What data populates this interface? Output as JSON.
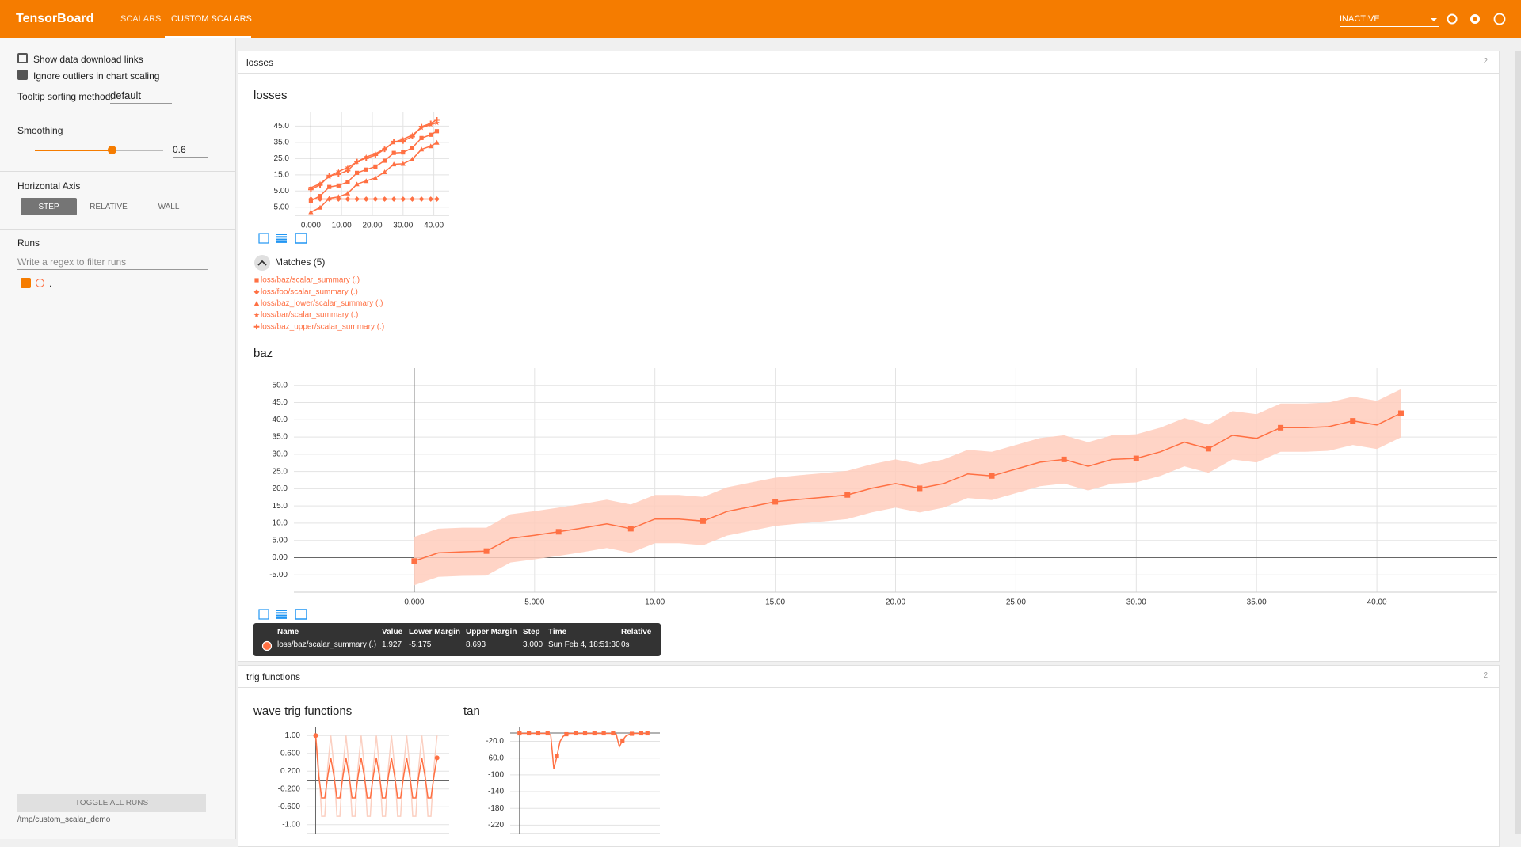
{
  "header": {
    "title": "TensorBoard",
    "tabs": [
      "SCALARS",
      "CUSTOM SCALARS"
    ],
    "status": "INACTIVE"
  },
  "sidebar": {
    "options": [
      {
        "label": "Show data download links",
        "checked": false
      },
      {
        "label": "Ignore outliers in chart scaling",
        "checked": true
      }
    ],
    "tooltip_label": "Tooltip sorting method:",
    "tooltip_value": "default",
    "smoothing_label": "Smoothing",
    "smoothing": 0.6,
    "axis_label": "Horizontal Axis",
    "axis_options": [
      "STEP",
      "RELATIVE",
      "WALL"
    ],
    "runs_label": "Runs",
    "runs_filter": "Write a regex to filter runs",
    "run": {
      "label": ".",
      "checked": true
    },
    "toggle": "TOGGLE ALL RUNS",
    "logdir": "/tmp/custom_scalar_demo"
  },
  "sections": [
    {
      "title": "losses",
      "count": 2,
      "charts": [
        {
          "type": "line",
          "title": "losses",
          "matches": "Matches (5)",
          "x": [
            0,
            3,
            6,
            9,
            12,
            15,
            18,
            21,
            24,
            27,
            30,
            33,
            36,
            39,
            41
          ],
          "xlim": [
            -5,
            45
          ],
          "ylim": [
            -10,
            54
          ],
          "xticks": [
            {
              "value": 0,
              "label": "0.000"
            },
            {
              "value": 10,
              "label": "10.00"
            },
            {
              "value": 20,
              "label": "20.00"
            },
            {
              "value": 30,
              "label": "30.00"
            },
            {
              "value": 40,
              "label": "40.00"
            }
          ],
          "yticks": [
            {
              "value": 45,
              "label": "45.0"
            },
            {
              "value": 35,
              "label": "35.0"
            },
            {
              "value": 25,
              "label": "25.0"
            },
            {
              "value": 15,
              "label": "15.0"
            },
            {
              "value": 5,
              "label": "5.00"
            },
            {
              "value": -5,
              "label": "-5.00"
            }
          ],
          "series": [
            {
              "name": "loss/baz/scalar_summary (.)",
              "color": "#ff7043",
              "marker": "square",
              "values": [
                -1.0,
                1.9,
                7.5,
                8.4,
                10.6,
                16.2,
                18.2,
                20.1,
                23.7,
                28.5,
                28.8,
                31.6,
                37.7,
                39.7,
                41.9
              ]
            },
            {
              "name": "loss/foo/scalar_summary (.)",
              "color": "#ff7043",
              "marker": "diamond",
              "values": [
                0,
                0,
                0,
                0,
                0,
                0,
                0,
                0,
                0,
                0,
                0,
                0,
                0,
                0,
                0
              ]
            },
            {
              "name": "loss/baz_lower/scalar_summary (.)",
              "color": "#ff7043",
              "marker": "triangle",
              "values": [
                -8.0,
                -5.2,
                0.5,
                1.4,
                3.6,
                9.2,
                11.2,
                13.1,
                16.7,
                21.5,
                21.8,
                24.6,
                30.7,
                32.7,
                34.9
              ]
            },
            {
              "name": "loss/bar/scalar_summary (.)",
              "color": "#ff7043",
              "marker": "star",
              "values": [
                7.0,
                9.5,
                14.0,
                17.0,
                19.5,
                23.0,
                26.0,
                28.0,
                31.0,
                35.0,
                37.0,
                39.5,
                44.0,
                46.0,
                47.0
              ]
            },
            {
              "name": "loss/baz_upper/scalar_summary (.)",
              "color": "#ff7043",
              "marker": "plus",
              "values": [
                6.0,
                8.7,
                14.5,
                15.4,
                17.6,
                23.2,
                25.2,
                27.1,
                30.7,
                35.5,
                35.8,
                38.6,
                44.7,
                46.7,
                48.9
              ]
            }
          ]
        },
        {
          "type": "margin",
          "title": "baz",
          "x": [
            0,
            1,
            2,
            3,
            4,
            5,
            6,
            7,
            8,
            9,
            10,
            11,
            12,
            13,
            14,
            15,
            16,
            17,
            18,
            19,
            20,
            21,
            22,
            23,
            24,
            25,
            26,
            27,
            28,
            29,
            30,
            31,
            32,
            33,
            34,
            35,
            36,
            37,
            38,
            39,
            40,
            41
          ],
          "xlim": [
            -5,
            45
          ],
          "ylim": [
            -10,
            55
          ],
          "xticks": [
            {
              "value": 0,
              "label": "0.000"
            },
            {
              "value": 5,
              "label": "5.000"
            },
            {
              "value": 10,
              "label": "10.00"
            },
            {
              "value": 15,
              "label": "15.00"
            },
            {
              "value": 20,
              "label": "20.00"
            },
            {
              "value": 25,
              "label": "25.00"
            },
            {
              "value": 30,
              "label": "30.00"
            },
            {
              "value": 35,
              "label": "35.00"
            },
            {
              "value": 40,
              "label": "40.00"
            }
          ],
          "yticks": [
            {
              "value": 50,
              "label": "50.0"
            },
            {
              "value": 45,
              "label": "45.0"
            },
            {
              "value": 40,
              "label": "40.0"
            },
            {
              "value": 35,
              "label": "35.0"
            },
            {
              "value": 30,
              "label": "30.0"
            },
            {
              "value": 25,
              "label": "25.0"
            },
            {
              "value": 20,
              "label": "20.0"
            },
            {
              "value": 15,
              "label": "15.0"
            },
            {
              "value": 10,
              "label": "10.0"
            },
            {
              "value": 5,
              "label": "5.00"
            },
            {
              "value": 0,
              "label": "0.00"
            },
            {
              "value": -5,
              "label": "-5.00"
            }
          ],
          "series": [
            {
              "name": "loss/baz/scalar_summary (.)",
              "color": "#ff7043",
              "band_color": "#ffccbc",
              "marker": "square",
              "values": [
                -1.0,
                1.4,
                1.7,
                1.9,
                5.6,
                6.5,
                7.5,
                8.6,
                9.8,
                8.4,
                11.2,
                11.2,
                10.6,
                13.4,
                14.8,
                16.2,
                16.9,
                17.5,
                18.2,
                20.1,
                21.5,
                20.1,
                21.5,
                24.3,
                23.7,
                25.7,
                27.7,
                28.5,
                26.5,
                28.5,
                28.8,
                30.7,
                33.5,
                31.6,
                35.5,
                34.6,
                37.7,
                37.7,
                38.0,
                39.7,
                38.5,
                41.9
              ],
              "upper": [
                6.0,
                8.4,
                8.7,
                8.7,
                12.6,
                13.5,
                14.5,
                15.6,
                16.8,
                15.4,
                18.2,
                18.2,
                17.6,
                20.4,
                21.8,
                23.2,
                23.9,
                24.5,
                25.2,
                27.1,
                28.5,
                27.1,
                28.5,
                31.3,
                30.7,
                32.7,
                34.7,
                35.5,
                33.5,
                35.5,
                35.8,
                37.7,
                40.5,
                38.6,
                42.5,
                41.6,
                44.7,
                44.7,
                45.0,
                46.7,
                45.5,
                48.9
              ],
              "lower": [
                -8.0,
                -5.6,
                -5.3,
                -5.2,
                -1.4,
                -0.5,
                0.5,
                1.6,
                2.8,
                1.4,
                4.2,
                4.2,
                3.6,
                6.4,
                7.8,
                9.2,
                9.9,
                10.5,
                11.2,
                13.1,
                14.5,
                13.1,
                14.5,
                17.3,
                16.7,
                18.7,
                20.7,
                21.5,
                19.5,
                21.5,
                21.8,
                23.7,
                26.5,
                24.6,
                28.5,
                27.6,
                30.7,
                30.7,
                31.0,
                32.7,
                31.5,
                34.9
              ]
            }
          ],
          "tooltip": {
            "headers": [
              "Name",
              "Value",
              "Lower Margin",
              "Upper Margin",
              "Step",
              "Time",
              "Relative"
            ],
            "row": [
              "loss/baz/scalar_summary (.)",
              "1.927",
              "-5.175",
              "8.693",
              "3.000",
              "Sun Feb 4, 18:51:30",
              "0s"
            ]
          }
        }
      ]
    },
    {
      "title": "trig functions",
      "count": 2,
      "charts": [
        {
          "type": "line",
          "title": "wave trig functions",
          "x": [
            0,
            1,
            2,
            3,
            4,
            5,
            6,
            7,
            8,
            9,
            10,
            11,
            12,
            13,
            14,
            15,
            16,
            17,
            18,
            19,
            20,
            21,
            22,
            23,
            24,
            25,
            26,
            27,
            28,
            29,
            30,
            31,
            32,
            33,
            34,
            35,
            36,
            37,
            38,
            39,
            40
          ],
          "xlim": [
            -3,
            44
          ],
          "ylim": [
            -1.2,
            1.2
          ],
          "yticks": [
            {
              "value": 1,
              "label": "1.00"
            },
            {
              "value": 0.6,
              "label": "0.600"
            },
            {
              "value": 0.2,
              "label": "0.200"
            },
            {
              "value": -0.2,
              "label": "-0.200"
            },
            {
              "value": -0.6,
              "label": "-0.600"
            },
            {
              "value": -1,
              "label": "-1.00"
            }
          ],
          "series": [
            {
              "color": "#fbd0c2",
              "values": [
                1,
                0.31,
                -0.81,
                -0.81,
                0.31,
                1,
                0.31,
                -0.81,
                -0.81,
                0.31,
                1,
                0.31,
                -0.81,
                -0.81,
                0.31,
                1,
                0.31,
                -0.81,
                -0.81,
                0.31,
                1,
                0.31,
                -0.81,
                -0.81,
                0.31,
                1,
                0.31,
                -0.81,
                -0.81,
                0.31,
                1,
                0.31,
                -0.81,
                -0.81,
                0.31,
                1,
                0.31,
                -0.81,
                -0.81,
                0.31,
                1
              ]
            },
            {
              "color": "#ff7043",
              "marker": "circle",
              "values": [
                1.0,
                0.1,
                -0.4,
                -0.4,
                0.1,
                0.5,
                0.1,
                -0.4,
                -0.4,
                0.1,
                0.5,
                0.1,
                -0.4,
                -0.4,
                0.1,
                0.5,
                0.1,
                -0.4,
                -0.4,
                0.1,
                0.5,
                0.1,
                -0.4,
                -0.4,
                0.1,
                0.5,
                0.1,
                -0.4,
                -0.4,
                0.1,
                0.5,
                0.1,
                -0.4,
                -0.4,
                0.1,
                0.5,
                0.1,
                -0.4,
                -0.4,
                0.1,
                0.5
              ]
            }
          ]
        },
        {
          "type": "line",
          "title": "tan",
          "x": [
            0,
            1,
            2,
            3,
            4,
            5,
            6,
            7,
            8,
            9,
            10,
            11,
            12,
            13,
            14,
            15,
            16,
            17,
            18,
            19,
            20,
            21,
            22,
            23,
            24,
            25,
            26,
            27,
            28,
            29,
            30,
            31,
            32,
            33,
            34,
            35,
            36,
            37,
            38,
            39,
            40,
            41
          ],
          "xlim": [
            -3,
            45
          ],
          "ylim": [
            -240,
            15
          ],
          "yticks": [
            {
              "value": -20,
              "label": "-20.0"
            },
            {
              "value": -60,
              "label": "-60.0"
            },
            -100,
            -140,
            -180,
            -220
          ],
          "series": [
            {
              "color": "#ff7043",
              "marker": "square",
              "values": [
                -1,
                -1,
                -1,
                -1,
                -1,
                -1,
                -1,
                -1,
                -1,
                -1,
                -5,
                -86,
                -55,
                -20,
                -8,
                -3,
                -1,
                -1,
                -1,
                -1,
                -1,
                -1,
                -1,
                -1,
                -1,
                -1,
                -1,
                -1,
                -1,
                -1,
                -1,
                -3,
                -33,
                -18,
                -8,
                -4,
                -2,
                -1,
                -1,
                -1,
                -1,
                -1
              ]
            }
          ]
        }
      ]
    }
  ]
}
